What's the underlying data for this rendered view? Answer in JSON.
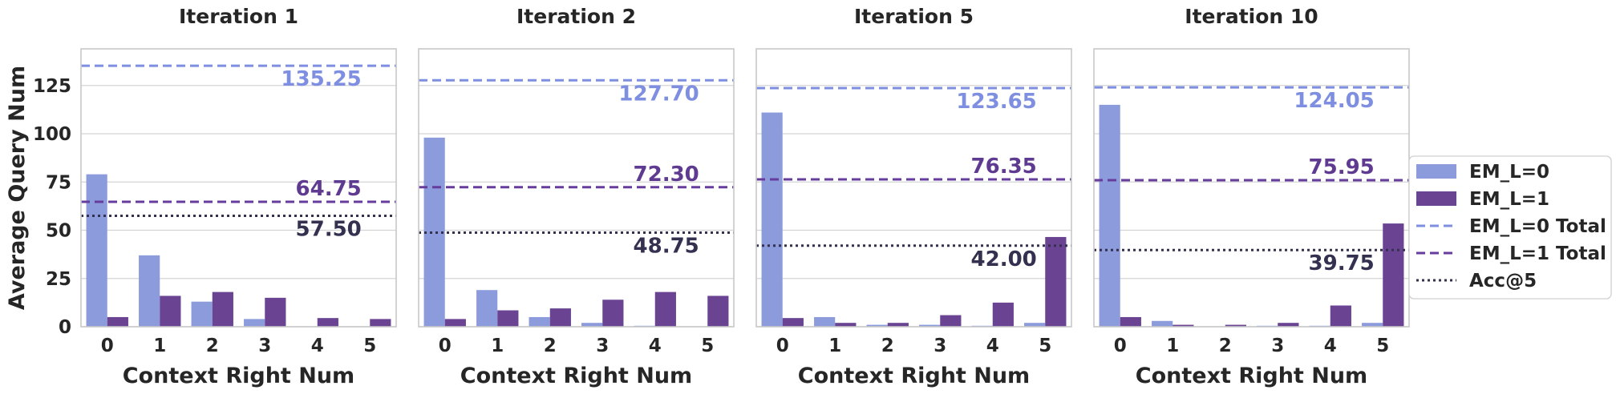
{
  "colors": {
    "em0_bar": "#8c9bdb",
    "em1_bar": "#6a4493",
    "em0_line": "#7e8ee0",
    "em1_line": "#663d9c",
    "acc_line": "#34304f",
    "em0_text": "#7e8ee0",
    "em1_text": "#5f3a91",
    "acc_text": "#34304f"
  },
  "legend": {
    "items": [
      {
        "label": "EM_L=0",
        "kind": "patch",
        "color_key": "em0_bar"
      },
      {
        "label": "EM_L=1",
        "kind": "patch",
        "color_key": "em1_bar"
      },
      {
        "label": "EM_L=0 Total",
        "kind": "dashed",
        "color_key": "em0_line"
      },
      {
        "label": "EM_L=1 Total",
        "kind": "dashed",
        "color_key": "em1_line"
      },
      {
        "label": "Acc@5",
        "kind": "dotted",
        "color_key": "acc_line"
      }
    ],
    "placement": "right"
  },
  "chart_data": [
    {
      "type": "bar",
      "title": "Iteration 1",
      "xlabel": "Context Right Num",
      "ylabel": "Average Query Num",
      "categories": [
        "0",
        "1",
        "2",
        "3",
        "4",
        "5"
      ],
      "ylim": [
        0,
        144
      ],
      "yticks": [
        0,
        25,
        50,
        75,
        100,
        125
      ],
      "grid": true,
      "series": [
        {
          "name": "EM_L=0",
          "values": [
            79,
            37,
            13,
            4,
            0,
            0
          ]
        },
        {
          "name": "EM_L=1",
          "values": [
            5,
            16,
            18,
            15,
            4.5,
            4
          ]
        }
      ],
      "hlines": [
        {
          "name": "EM_L=0 Total",
          "value": 135.25,
          "label": "135.25"
        },
        {
          "name": "EM_L=1 Total",
          "value": 64.75,
          "label": "64.75"
        },
        {
          "name": "Acc@5",
          "value": 57.5,
          "label": "57.50"
        }
      ]
    },
    {
      "type": "bar",
      "title": "Iteration 2",
      "xlabel": "Context Right Num",
      "ylabel": "",
      "categories": [
        "0",
        "1",
        "2",
        "3",
        "4",
        "5"
      ],
      "ylim": [
        0,
        144
      ],
      "yticks": [
        0,
        25,
        50,
        75,
        100,
        125
      ],
      "grid": true,
      "series": [
        {
          "name": "EM_L=0",
          "values": [
            98,
            19,
            5,
            2,
            0.5,
            0
          ]
        },
        {
          "name": "EM_L=1",
          "values": [
            4,
            8.5,
            9.5,
            14,
            18,
            16
          ]
        }
      ],
      "hlines": [
        {
          "name": "EM_L=0 Total",
          "value": 127.7,
          "label": "127.70"
        },
        {
          "name": "EM_L=1 Total",
          "value": 72.3,
          "label": "72.30"
        },
        {
          "name": "Acc@5",
          "value": 48.75,
          "label": "48.75"
        }
      ]
    },
    {
      "type": "bar",
      "title": "Iteration 5",
      "xlabel": "Context Right Num",
      "ylabel": "",
      "categories": [
        "0",
        "1",
        "2",
        "3",
        "4",
        "5"
      ],
      "ylim": [
        0,
        144
      ],
      "yticks": [
        0,
        25,
        50,
        75,
        100,
        125
      ],
      "grid": true,
      "series": [
        {
          "name": "EM_L=0",
          "values": [
            111,
            5,
            1,
            1,
            0.5,
            2
          ]
        },
        {
          "name": "EM_L=1",
          "values": [
            4.5,
            2,
            2,
            6,
            12.5,
            46.5
          ]
        }
      ],
      "hlines": [
        {
          "name": "EM_L=0 Total",
          "value": 123.65,
          "label": "123.65"
        },
        {
          "name": "EM_L=1 Total",
          "value": 76.35,
          "label": "76.35"
        },
        {
          "name": "Acc@5",
          "value": 42.0,
          "label": "42.00"
        }
      ]
    },
    {
      "type": "bar",
      "title": "Iteration 10",
      "xlabel": "Context Right Num",
      "ylabel": "",
      "categories": [
        "0",
        "1",
        "2",
        "3",
        "4",
        "5"
      ],
      "ylim": [
        0,
        144
      ],
      "yticks": [
        0,
        25,
        50,
        75,
        100,
        125
      ],
      "grid": true,
      "series": [
        {
          "name": "EM_L=0",
          "values": [
            115,
            3,
            0,
            0.5,
            0.5,
            2
          ]
        },
        {
          "name": "EM_L=1",
          "values": [
            5,
            1,
            1,
            2,
            11,
            53.5
          ]
        }
      ],
      "hlines": [
        {
          "name": "EM_L=0 Total",
          "value": 124.05,
          "label": "124.05"
        },
        {
          "name": "EM_L=1 Total",
          "value": 75.95,
          "label": "75.95"
        },
        {
          "name": "Acc@5",
          "value": 39.75,
          "label": "39.75"
        }
      ]
    }
  ]
}
